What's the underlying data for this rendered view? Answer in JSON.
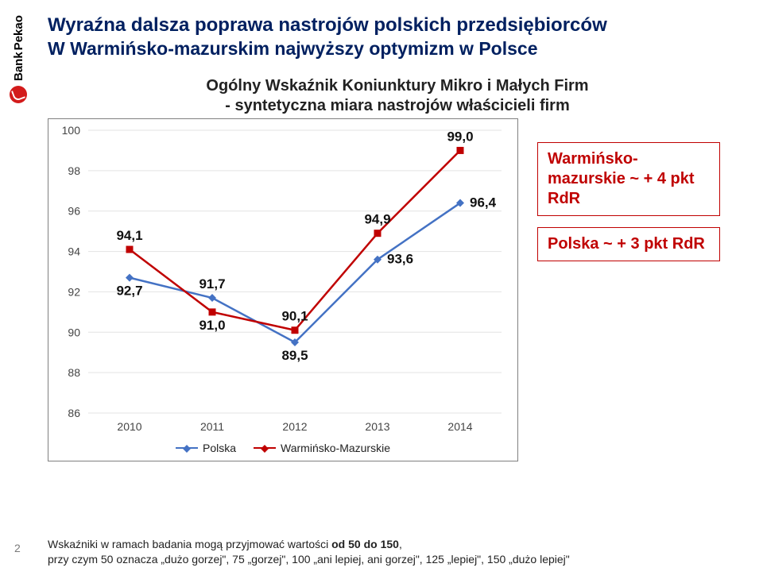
{
  "brand": {
    "bank": "Bank",
    "pekao": "Pekao"
  },
  "title": {
    "main": "Wyraźna dalsza poprawa nastrojów polskich przedsiębiorców",
    "sub": "W Warmińsko-mazurskim najwyższy optymizm w Polsce"
  },
  "chart": {
    "title1": "Ogólny Wskaźnik Koniunktury Mikro i Małych Firm",
    "title2": "- syntetyczna miara nastrojów właścicieli firm",
    "type": "line",
    "x_labels": [
      "2010",
      "2011",
      "2012",
      "2013",
      "2014"
    ],
    "y_min": 86,
    "y_max": 100,
    "y_ticks": [
      86,
      88,
      90,
      92,
      94,
      96,
      98,
      100
    ],
    "grid_color": "#e3e3e3",
    "background_color": "#ffffff",
    "series": [
      {
        "name": "Polska",
        "color": "#4472c4",
        "marker": "diamond",
        "values": [
          92.7,
          91.7,
          89.5,
          93.6,
          96.4
        ],
        "label_positions": [
          "below",
          "above",
          "below",
          "right",
          "right"
        ]
      },
      {
        "name": "Warmińsko-Mazurskie",
        "color": "#c00000",
        "marker": "square",
        "values": [
          94.1,
          91.0,
          90.1,
          94.9,
          99.0
        ],
        "label_positions": [
          "above",
          "below",
          "above",
          "above",
          "above"
        ]
      }
    ],
    "legend": {
      "items": [
        {
          "label": "Polska",
          "color": "#4472c4"
        },
        {
          "label": "Warmińsko-Mazurskie",
          "color": "#c00000"
        }
      ]
    },
    "side_boxes": [
      {
        "text": "Warmińsko-mazurskie ~ + 4 pkt RdR"
      },
      {
        "text": "Polska ~ + 3 pkt RdR"
      }
    ],
    "side_box_border": "#c00000",
    "side_box_text_color": "#c00000"
  },
  "footer": {
    "page_num": "2",
    "line1_a": "Wskaźniki w ramach badania mogą przyjmować wartości ",
    "line1_b": "od 50 do 150",
    "line1_c": ",",
    "line2": "przy czym  50 oznacza „dużo gorzej\", 75 „gorzej\", 100 „ani lepiej, ani gorzej\", 125 „lepiej\", 150 „dużo lepiej\""
  }
}
